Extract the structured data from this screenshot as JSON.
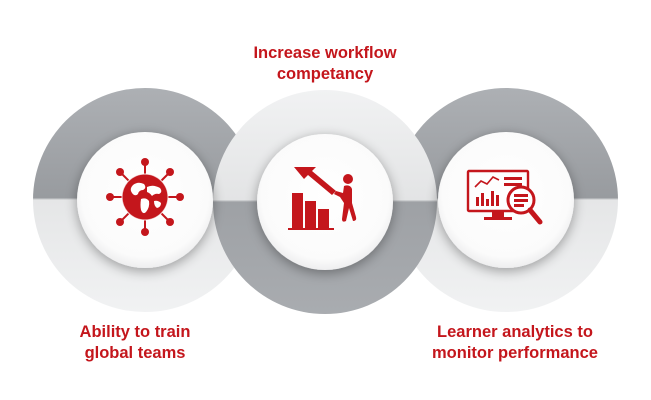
{
  "captions": {
    "top": {
      "line1": "Increase workflow",
      "line2": "competancy"
    },
    "left": {
      "line1": "Ability to train",
      "line2": "global teams"
    },
    "right": {
      "line1": "Learner analytics to",
      "line2": "monitor performance"
    }
  },
  "icons": {
    "left": "globe-network-icon",
    "center": "growth-chart-person-icon",
    "right": "analytics-monitor-magnifier-icon"
  },
  "colors": {
    "accent": "#c4161c",
    "ring_dark": "#9ea1a5",
    "ring_light": "#e7e8e9",
    "circle_fill": "#ffffff"
  }
}
